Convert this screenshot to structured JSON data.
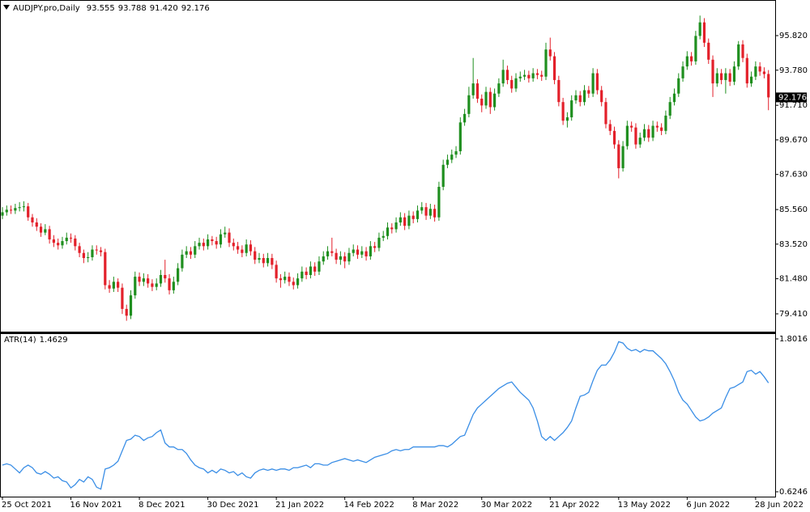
{
  "chart_data": {
    "type": "candlestick",
    "title": "AUDJPY.pro,Daily",
    "last_bar_labels": [
      "93.555",
      "93.788",
      "91.420",
      "92.176"
    ],
    "up_color": "#1f8f1f",
    "down_color": "#e3202a",
    "ylim": [
      78.36,
      97.92
    ],
    "yticks": [
      {
        "value": 95.82,
        "label": "95.820"
      },
      {
        "value": 93.78,
        "label": "93.780"
      },
      {
        "value": 91.71,
        "label": "91.710"
      },
      {
        "value": 89.67,
        "label": "89.670"
      },
      {
        "value": 87.63,
        "label": "87.630"
      },
      {
        "value": 85.56,
        "label": "85.560"
      },
      {
        "value": 83.52,
        "label": "83.520"
      },
      {
        "value": 81.48,
        "label": "81.480"
      },
      {
        "value": 79.41,
        "label": "79.410"
      }
    ],
    "categories": [
      "25 Oct 2021",
      null,
      null,
      null,
      null,
      null,
      null,
      null,
      null,
      null,
      null,
      null,
      null,
      null,
      null,
      null,
      "16 Nov 2021",
      null,
      null,
      null,
      null,
      null,
      null,
      null,
      null,
      null,
      null,
      null,
      null,
      null,
      null,
      null,
      "8 Dec 2021",
      null,
      null,
      null,
      null,
      null,
      null,
      null,
      null,
      null,
      null,
      null,
      null,
      null,
      null,
      null,
      "30 Dec 2021",
      null,
      null,
      null,
      null,
      null,
      null,
      null,
      null,
      null,
      null,
      null,
      null,
      null,
      null,
      null,
      "21 Jan 2022",
      null,
      null,
      null,
      null,
      null,
      null,
      null,
      null,
      null,
      null,
      null,
      null,
      null,
      null,
      null,
      "14 Feb 2022",
      null,
      null,
      null,
      null,
      null,
      null,
      null,
      null,
      null,
      null,
      null,
      null,
      null,
      null,
      null,
      "8 Mar 2022",
      null,
      null,
      null,
      null,
      null,
      null,
      null,
      null,
      null,
      null,
      null,
      null,
      null,
      null,
      null,
      "30 Mar 2022",
      null,
      null,
      null,
      null,
      null,
      null,
      null,
      null,
      null,
      null,
      null,
      null,
      null,
      null,
      null,
      "21 Apr 2022",
      null,
      null,
      null,
      null,
      null,
      null,
      null,
      null,
      null,
      null,
      null,
      null,
      null,
      null,
      null,
      "13 May 2022",
      null,
      null,
      null,
      null,
      null,
      null,
      null,
      null,
      null,
      null,
      null,
      null,
      null,
      null,
      null,
      "6 Jun 2022",
      null,
      null,
      null,
      null,
      null,
      null,
      null,
      null,
      null,
      null,
      null,
      null,
      null,
      null,
      null,
      "28 Jun 2022",
      null,
      null,
      null
    ],
    "candles": [
      [
        85.2,
        85.7,
        85.0,
        85.4
      ],
      [
        85.4,
        85.8,
        85.2,
        85.55
      ],
      [
        85.55,
        85.8,
        85.3,
        85.5
      ],
      [
        85.5,
        85.9,
        85.3,
        85.65
      ],
      [
        85.65,
        86.0,
        85.45,
        85.7
      ],
      [
        85.7,
        86.05,
        85.45,
        85.75
      ],
      [
        85.75,
        85.95,
        84.9,
        85.1
      ],
      [
        85.1,
        85.3,
        84.55,
        84.8
      ],
      [
        84.8,
        85.05,
        84.3,
        84.55
      ],
      [
        84.55,
        84.75,
        83.95,
        84.2
      ],
      [
        84.2,
        84.7,
        84.05,
        84.4
      ],
      [
        84.4,
        84.6,
        83.55,
        83.8
      ],
      [
        83.8,
        84.05,
        83.35,
        83.6
      ],
      [
        83.6,
        83.85,
        83.2,
        83.45
      ],
      [
        83.45,
        83.95,
        83.25,
        83.7
      ],
      [
        83.7,
        84.2,
        83.5,
        83.9
      ],
      [
        83.9,
        84.15,
        83.6,
        83.85
      ],
      [
        83.85,
        84.05,
        83.15,
        83.4
      ],
      [
        83.4,
        83.6,
        82.75,
        83.0
      ],
      [
        83.0,
        83.2,
        82.4,
        82.7
      ],
      [
        82.7,
        83.05,
        82.45,
        82.75
      ],
      [
        82.75,
        83.45,
        82.55,
        83.2
      ],
      [
        83.2,
        83.45,
        82.9,
        83.15
      ],
      [
        83.15,
        83.35,
        82.8,
        83.05
      ],
      [
        83.05,
        83.25,
        80.85,
        81.1
      ],
      [
        81.1,
        81.4,
        80.65,
        80.9
      ],
      [
        80.9,
        81.6,
        80.7,
        81.3
      ],
      [
        81.3,
        81.5,
        80.7,
        80.95
      ],
      [
        80.95,
        81.2,
        79.4,
        79.7
      ],
      [
        79.7,
        79.95,
        79.0,
        79.3
      ],
      [
        79.3,
        80.8,
        79.1,
        80.5
      ],
      [
        80.5,
        81.9,
        80.3,
        81.6
      ],
      [
        81.6,
        81.85,
        81.05,
        81.3
      ],
      [
        81.3,
        81.8,
        81.05,
        81.5
      ],
      [
        81.5,
        81.75,
        80.95,
        81.2
      ],
      [
        81.2,
        81.45,
        80.75,
        81.0
      ],
      [
        81.0,
        81.5,
        80.8,
        81.2
      ],
      [
        81.2,
        82.0,
        81.0,
        81.7
      ],
      [
        81.7,
        82.6,
        81.25,
        81.5
      ],
      [
        81.5,
        81.75,
        80.55,
        80.8
      ],
      [
        80.8,
        81.6,
        80.6,
        81.3
      ],
      [
        81.3,
        82.4,
        81.1,
        82.1
      ],
      [
        82.1,
        83.2,
        81.9,
        82.9
      ],
      [
        82.9,
        83.4,
        82.7,
        83.1
      ],
      [
        83.1,
        83.35,
        82.65,
        82.9
      ],
      [
        82.9,
        83.7,
        82.7,
        83.4
      ],
      [
        83.4,
        83.9,
        83.2,
        83.6
      ],
      [
        83.6,
        83.85,
        83.15,
        83.4
      ],
      [
        83.4,
        84.1,
        83.2,
        83.8
      ],
      [
        83.8,
        84.0,
        83.45,
        83.7
      ],
      [
        83.7,
        83.95,
        83.25,
        83.5
      ],
      [
        83.5,
        84.4,
        83.3,
        84.1
      ],
      [
        84.1,
        84.55,
        83.9,
        84.2
      ],
      [
        84.2,
        84.45,
        83.35,
        83.6
      ],
      [
        83.6,
        83.85,
        83.15,
        83.4
      ],
      [
        83.4,
        83.65,
        82.95,
        83.2
      ],
      [
        83.2,
        83.45,
        82.75,
        83.0
      ],
      [
        83.0,
        83.8,
        82.8,
        83.5
      ],
      [
        83.5,
        83.75,
        82.85,
        83.1
      ],
      [
        83.1,
        83.35,
        82.35,
        82.6
      ],
      [
        82.6,
        83.0,
        82.4,
        82.7
      ],
      [
        82.7,
        82.95,
        82.15,
        82.4
      ],
      [
        82.4,
        83.0,
        82.2,
        82.7
      ],
      [
        82.7,
        82.95,
        82.05,
        82.3
      ],
      [
        82.3,
        82.55,
        81.25,
        81.5
      ],
      [
        81.5,
        81.75,
        80.95,
        81.4
      ],
      [
        81.4,
        81.9,
        81.2,
        81.6
      ],
      [
        81.6,
        81.85,
        81.05,
        81.3
      ],
      [
        81.3,
        81.55,
        80.85,
        81.1
      ],
      [
        81.1,
        81.8,
        80.9,
        81.5
      ],
      [
        81.5,
        82.2,
        81.3,
        81.9
      ],
      [
        81.9,
        82.15,
        81.45,
        81.7
      ],
      [
        81.7,
        82.5,
        81.5,
        82.2
      ],
      [
        82.2,
        82.45,
        81.65,
        81.9
      ],
      [
        81.9,
        82.8,
        81.7,
        82.5
      ],
      [
        82.5,
        83.1,
        82.3,
        82.8
      ],
      [
        82.8,
        83.4,
        82.6,
        83.1
      ],
      [
        83.1,
        83.9,
        82.8,
        83.0
      ],
      [
        83.0,
        83.25,
        82.35,
        82.6
      ],
      [
        82.6,
        83.1,
        82.3,
        82.8
      ],
      [
        82.8,
        83.05,
        82.1,
        82.5
      ],
      [
        82.5,
        83.3,
        82.3,
        83.0
      ],
      [
        83.0,
        83.5,
        82.8,
        83.2
      ],
      [
        83.2,
        83.45,
        82.65,
        82.9
      ],
      [
        82.9,
        83.4,
        82.7,
        83.1
      ],
      [
        83.1,
        83.35,
        82.55,
        82.8
      ],
      [
        82.8,
        83.7,
        82.6,
        83.4
      ],
      [
        83.4,
        83.65,
        83.05,
        83.3
      ],
      [
        83.3,
        84.2,
        83.1,
        83.9
      ],
      [
        83.9,
        84.3,
        83.7,
        84.0
      ],
      [
        84.0,
        84.8,
        83.8,
        84.5
      ],
      [
        84.5,
        84.75,
        84.15,
        84.4
      ],
      [
        84.4,
        85.1,
        84.2,
        84.8
      ],
      [
        84.8,
        85.4,
        84.6,
        85.1
      ],
      [
        85.1,
        85.35,
        84.35,
        84.6
      ],
      [
        84.6,
        85.5,
        84.4,
        85.2
      ],
      [
        85.2,
        85.45,
        84.75,
        85.0
      ],
      [
        85.0,
        85.8,
        84.8,
        85.5
      ],
      [
        85.5,
        86.0,
        85.3,
        85.7
      ],
      [
        85.7,
        85.95,
        84.95,
        85.2
      ],
      [
        85.2,
        85.9,
        85.0,
        85.6
      ],
      [
        85.6,
        85.85,
        84.85,
        85.1
      ],
      [
        85.1,
        87.2,
        84.9,
        86.9
      ],
      [
        86.9,
        88.5,
        86.7,
        88.2
      ],
      [
        88.2,
        88.8,
        88.0,
        88.5
      ],
      [
        88.5,
        89.1,
        88.3,
        88.8
      ],
      [
        88.8,
        89.3,
        88.6,
        89.0
      ],
      [
        89.0,
        91.0,
        88.8,
        90.7
      ],
      [
        90.7,
        91.5,
        90.5,
        91.2
      ],
      [
        91.2,
        92.8,
        91.0,
        92.3
      ],
      [
        92.3,
        94.5,
        92.1,
        93.0
      ],
      [
        93.0,
        93.25,
        91.85,
        92.1
      ],
      [
        92.1,
        92.35,
        91.3,
        91.7
      ],
      [
        91.7,
        92.8,
        91.5,
        92.5
      ],
      [
        92.5,
        92.75,
        91.2,
        91.6
      ],
      [
        91.6,
        92.7,
        91.4,
        92.4
      ],
      [
        92.4,
        93.3,
        92.2,
        93.0
      ],
      [
        93.0,
        94.4,
        92.8,
        93.8
      ],
      [
        93.8,
        94.05,
        92.95,
        93.2
      ],
      [
        93.2,
        93.45,
        92.45,
        92.7
      ],
      [
        92.7,
        93.6,
        92.5,
        93.3
      ],
      [
        93.3,
        93.7,
        93.1,
        93.4
      ],
      [
        93.4,
        93.8,
        93.2,
        93.5
      ],
      [
        93.5,
        93.75,
        93.05,
        93.3
      ],
      [
        93.3,
        93.9,
        93.1,
        93.6
      ],
      [
        93.6,
        93.85,
        93.25,
        93.5
      ],
      [
        93.5,
        93.75,
        93.15,
        93.4
      ],
      [
        93.4,
        95.4,
        93.2,
        95.0
      ],
      [
        95.0,
        95.7,
        94.35,
        94.6
      ],
      [
        94.6,
        94.85,
        92.95,
        93.2
      ],
      [
        93.2,
        93.45,
        91.65,
        91.9
      ],
      [
        91.9,
        92.15,
        90.55,
        90.8
      ],
      [
        90.8,
        91.3,
        90.4,
        91.0
      ],
      [
        91.0,
        92.3,
        90.8,
        92.0
      ],
      [
        92.0,
        92.6,
        91.8,
        92.3
      ],
      [
        92.3,
        92.55,
        91.65,
        91.9
      ],
      [
        91.9,
        92.9,
        91.7,
        92.6
      ],
      [
        92.6,
        92.85,
        92.15,
        92.4
      ],
      [
        92.4,
        93.9,
        92.2,
        93.6
      ],
      [
        93.6,
        93.85,
        92.35,
        92.6
      ],
      [
        92.6,
        92.85,
        91.65,
        91.9
      ],
      [
        91.9,
        92.15,
        90.35,
        90.6
      ],
      [
        90.6,
        90.85,
        89.95,
        90.2
      ],
      [
        90.2,
        90.45,
        89.15,
        89.4
      ],
      [
        89.4,
        89.65,
        87.4,
        88.0
      ],
      [
        88.0,
        89.6,
        87.8,
        89.3
      ],
      [
        89.3,
        90.8,
        89.1,
        90.5
      ],
      [
        90.5,
        90.75,
        90.15,
        90.4
      ],
      [
        90.4,
        90.65,
        89.15,
        89.4
      ],
      [
        89.4,
        90.1,
        89.2,
        89.8
      ],
      [
        89.8,
        90.6,
        89.6,
        90.3
      ],
      [
        90.3,
        90.55,
        89.55,
        89.8
      ],
      [
        89.8,
        90.8,
        89.6,
        90.5
      ],
      [
        90.5,
        90.75,
        90.15,
        90.4
      ],
      [
        90.4,
        90.65,
        89.95,
        90.2
      ],
      [
        90.2,
        91.4,
        90.0,
        91.1
      ],
      [
        91.1,
        92.2,
        90.9,
        91.9
      ],
      [
        91.9,
        92.7,
        91.7,
        92.4
      ],
      [
        92.4,
        93.6,
        92.2,
        93.3
      ],
      [
        93.3,
        94.3,
        93.1,
        94.0
      ],
      [
        94.0,
        94.9,
        93.8,
        94.6
      ],
      [
        94.6,
        94.85,
        94.05,
        94.3
      ],
      [
        94.3,
        96.1,
        94.1,
        95.8
      ],
      [
        95.8,
        97.0,
        95.6,
        96.6
      ],
      [
        96.6,
        96.85,
        95.15,
        95.4
      ],
      [
        95.4,
        95.65,
        94.15,
        94.4
      ],
      [
        94.4,
        94.65,
        92.2,
        93.0
      ],
      [
        93.0,
        93.9,
        92.8,
        93.6
      ],
      [
        93.6,
        93.85,
        92.95,
        93.2
      ],
      [
        93.2,
        93.9,
        92.4,
        93.6
      ],
      [
        93.6,
        93.85,
        92.85,
        93.1
      ],
      [
        93.1,
        94.3,
        92.9,
        94.0
      ],
      [
        94.0,
        95.5,
        93.8,
        95.3
      ],
      [
        95.3,
        95.55,
        94.25,
        94.5
      ],
      [
        94.5,
        94.75,
        92.75,
        93.0
      ],
      [
        93.0,
        93.7,
        92.8,
        93.4
      ],
      [
        93.4,
        94.3,
        93.2,
        94.0
      ],
      [
        94.0,
        94.25,
        93.45,
        93.7
      ],
      [
        93.7,
        93.95,
        93.3,
        93.55
      ],
      [
        93.555,
        93.788,
        91.42,
        92.176
      ]
    ],
    "indicator": {
      "name": "ATR(14)",
      "color": "#3a8ee6",
      "ylim": [
        0.581,
        1.8452
      ],
      "yticks": [
        1.8016,
        0.6246
      ],
      "values": [
        0.83,
        0.84,
        0.83,
        0.8,
        0.77,
        0.81,
        0.83,
        0.81,
        0.77,
        0.76,
        0.78,
        0.76,
        0.73,
        0.74,
        0.71,
        0.7,
        0.655,
        0.68,
        0.72,
        0.7,
        0.74,
        0.72,
        0.66,
        0.645,
        0.8,
        0.81,
        0.83,
        0.86,
        0.94,
        1.02,
        1.03,
        1.06,
        1.05,
        1.02,
        1.04,
        1.05,
        1.08,
        1.1,
        1.0,
        0.97,
        0.97,
        0.95,
        0.95,
        0.92,
        0.87,
        0.83,
        0.81,
        0.8,
        0.77,
        0.79,
        0.77,
        0.8,
        0.79,
        0.77,
        0.78,
        0.75,
        0.77,
        0.74,
        0.73,
        0.77,
        0.79,
        0.8,
        0.79,
        0.8,
        0.79,
        0.8,
        0.8,
        0.79,
        0.81,
        0.81,
        0.82,
        0.83,
        0.81,
        0.84,
        0.84,
        0.83,
        0.83,
        0.85,
        0.86,
        0.87,
        0.88,
        0.87,
        0.86,
        0.87,
        0.86,
        0.85,
        0.87,
        0.89,
        0.9,
        0.91,
        0.92,
        0.94,
        0.95,
        0.94,
        0.95,
        0.95,
        0.97,
        0.97,
        0.97,
        0.97,
        0.97,
        0.97,
        0.98,
        0.98,
        0.97,
        0.99,
        1.02,
        1.05,
        1.06,
        1.14,
        1.22,
        1.27,
        1.3,
        1.33,
        1.36,
        1.39,
        1.42,
        1.44,
        1.46,
        1.47,
        1.43,
        1.39,
        1.36,
        1.33,
        1.27,
        1.17,
        1.05,
        1.02,
        1.05,
        1.02,
        1.05,
        1.08,
        1.12,
        1.17,
        1.27,
        1.36,
        1.37,
        1.39,
        1.48,
        1.56,
        1.6,
        1.6,
        1.64,
        1.7,
        1.78,
        1.77,
        1.73,
        1.71,
        1.72,
        1.7,
        1.72,
        1.71,
        1.71,
        1.68,
        1.65,
        1.61,
        1.55,
        1.48,
        1.39,
        1.33,
        1.3,
        1.25,
        1.2,
        1.17,
        1.18,
        1.2,
        1.23,
        1.25,
        1.27,
        1.35,
        1.42,
        1.43,
        1.45,
        1.47,
        1.55,
        1.56,
        1.53,
        1.55,
        1.51,
        1.4629
      ]
    }
  }
}
